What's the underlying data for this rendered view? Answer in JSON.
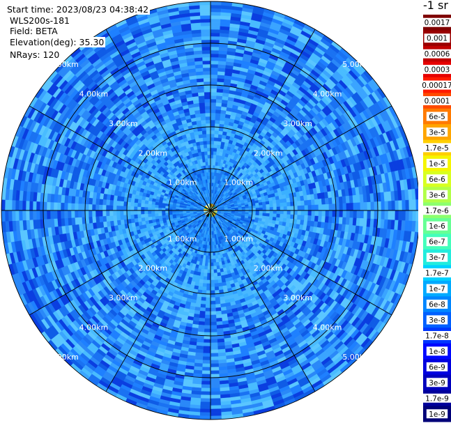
{
  "header": {
    "start_time": "Start time: 2023/08/23 04:38:42",
    "instrument": "WLS200s-181",
    "field": "Field: BETA",
    "elevation": "Elevation(deg): 35.30",
    "nrays": "NRays: 120"
  },
  "chart_data": {
    "type": "heatmap",
    "subtype": "polar-ppi",
    "field": "BETA",
    "elevation_deg": 35.3,
    "n_rays": 120,
    "max_range_km": 5.0,
    "range_rings_km": [
      1,
      2,
      3,
      4,
      5
    ],
    "spokes_deg": [
      0,
      30,
      60,
      90,
      120,
      150,
      180,
      210,
      240,
      270,
      300,
      330
    ],
    "ring_labels": [
      "1.00km",
      "2.00km",
      "3.00km",
      "4.00km",
      "5.00km"
    ],
    "dominant_regions": [
      {
        "range_km": [
          0,
          1.0
        ],
        "typical_value": "3e-8"
      },
      {
        "range_km": [
          1.0,
          2.3
        ],
        "typical_value": "6e-8"
      },
      {
        "range_km": [
          2.3,
          5.0
        ],
        "typical_value": "1e-8 to 3e-8"
      }
    ],
    "colorbar": {
      "unit": "-1 sr",
      "labels": [
        "0.0017",
        "0.001",
        "0.0006",
        "0.0003",
        "0.00017",
        "0.0001",
        "6e-5",
        "3e-5",
        "1.7e-5",
        "1e-5",
        "6e-6",
        "3e-6",
        "1.7e-6",
        "1e-6",
        "6e-7",
        "3e-7",
        "1.7e-7",
        "1e-7",
        "6e-8",
        "3e-8",
        "1.7e-8",
        "1e-8",
        "6e-9",
        "3e-9",
        "1.7e-9",
        "1e-9"
      ],
      "colors": [
        "#7f0000",
        "#9a0000",
        "#c00000",
        "#e60000",
        "#ff1a00",
        "#ff4a00",
        "#ff7a00",
        "#ffa500",
        "#ffcf00",
        "#f5f500",
        "#d8ff20",
        "#b2ff48",
        "#8cff6e",
        "#66ff94",
        "#43ffbb",
        "#22ecdd",
        "#00d2ff",
        "#00aaff",
        "#0086ff",
        "#0060ff",
        "#0036ff",
        "#0008ff",
        "#0000df",
        "#0000bd",
        "#00009b",
        "#000078"
      ]
    }
  }
}
